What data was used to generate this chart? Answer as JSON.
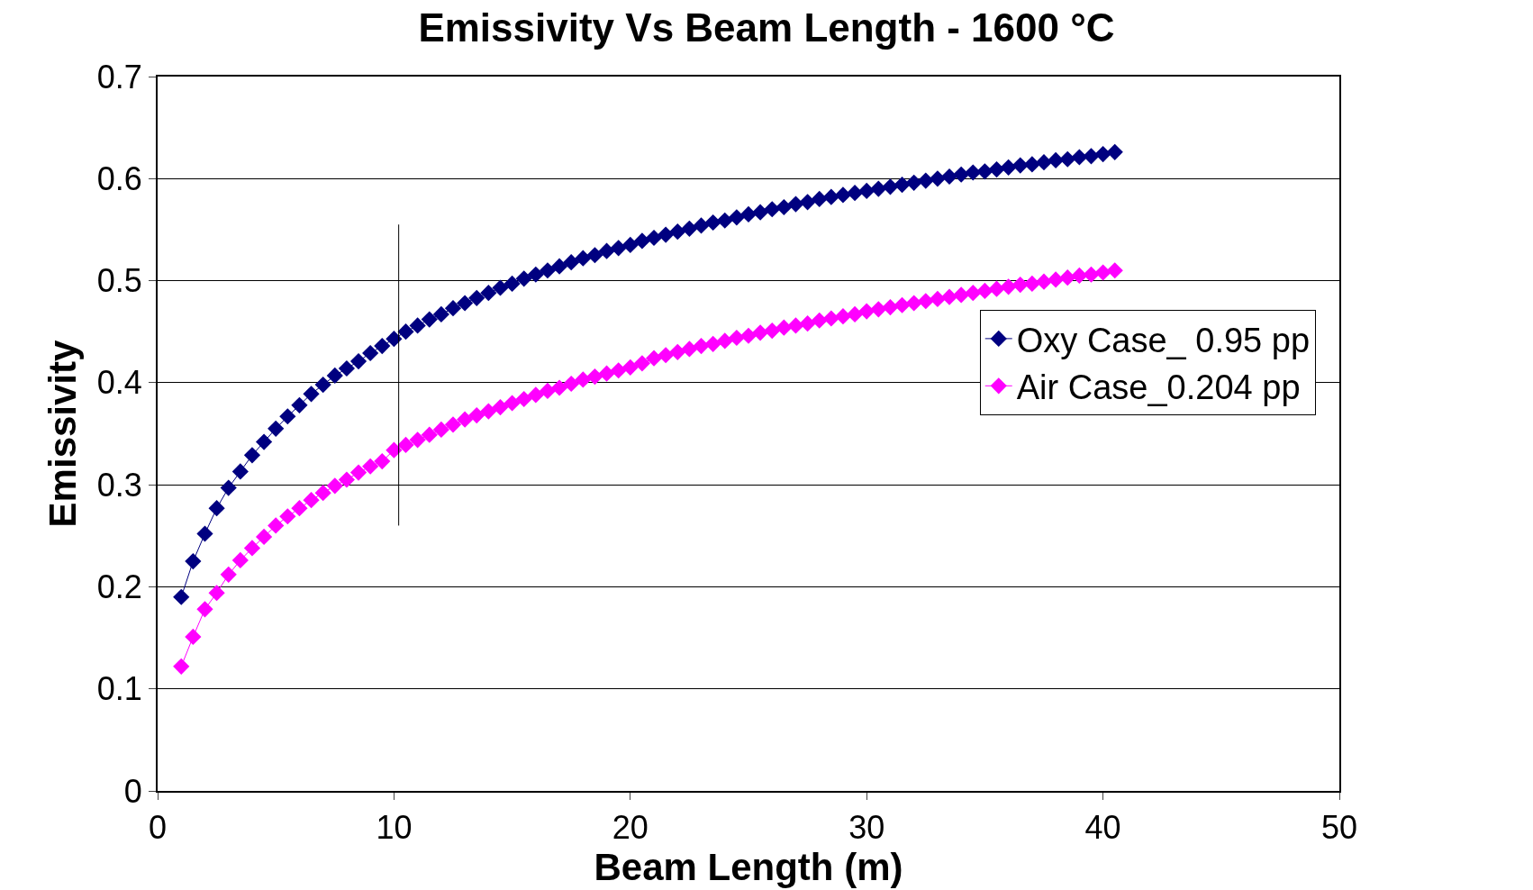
{
  "chart_data": {
    "type": "line",
    "title": "Emissivity Vs Beam Length - 1600 °C",
    "xlabel": "Beam Length (m)",
    "ylabel": "Emissivity",
    "x": [
      1,
      1.5,
      2,
      2.5,
      3,
      3.5,
      4,
      4.5,
      5,
      5.5,
      6,
      6.5,
      7,
      7.5,
      8,
      8.5,
      9,
      9.5,
      10,
      10.5,
      11,
      11.5,
      12,
      12.5,
      13,
      13.5,
      14,
      14.5,
      15,
      15.5,
      16,
      16.5,
      17,
      17.5,
      18,
      18.5,
      19,
      19.5,
      20,
      20.5,
      21,
      21.5,
      22,
      22.5,
      23,
      23.5,
      24,
      24.5,
      25,
      25.5,
      26,
      26.5,
      27,
      27.5,
      28,
      28.5,
      29,
      29.5,
      30,
      30.5,
      31,
      31.5,
      32,
      32.5,
      33,
      33.5,
      34,
      34.5,
      35,
      35.5,
      36,
      36.5,
      37,
      37.5,
      38,
      38.5,
      39,
      39.5,
      40,
      40.5
    ],
    "series": [
      {
        "name": "Oxy Case_ 0.95 pp",
        "color": "#000080",
        "values": [
          0.19,
          0.225,
          0.252,
          0.277,
          0.297,
          0.313,
          0.329,
          0.342,
          0.355,
          0.367,
          0.378,
          0.389,
          0.398,
          0.407,
          0.414,
          0.421,
          0.429,
          0.436,
          0.443,
          0.45,
          0.456,
          0.462,
          0.467,
          0.473,
          0.478,
          0.483,
          0.488,
          0.493,
          0.497,
          0.502,
          0.506,
          0.51,
          0.514,
          0.518,
          0.522,
          0.525,
          0.529,
          0.532,
          0.535,
          0.539,
          0.542,
          0.545,
          0.548,
          0.551,
          0.554,
          0.557,
          0.559,
          0.562,
          0.565,
          0.567,
          0.57,
          0.572,
          0.575,
          0.577,
          0.58,
          0.582,
          0.584,
          0.586,
          0.588,
          0.59,
          0.592,
          0.594,
          0.596,
          0.598,
          0.6,
          0.602,
          0.604,
          0.606,
          0.607,
          0.609,
          0.611,
          0.613,
          0.614,
          0.616,
          0.618,
          0.619,
          0.621,
          0.622,
          0.624,
          0.626
        ]
      },
      {
        "name": "Air Case_0.204 pp",
        "color": "#ff00ff",
        "values": [
          0.122,
          0.151,
          0.178,
          0.194,
          0.212,
          0.226,
          0.238,
          0.249,
          0.26,
          0.269,
          0.277,
          0.285,
          0.292,
          0.299,
          0.305,
          0.312,
          0.318,
          0.323,
          0.334,
          0.339,
          0.344,
          0.349,
          0.354,
          0.359,
          0.364,
          0.368,
          0.372,
          0.376,
          0.38,
          0.384,
          0.388,
          0.392,
          0.395,
          0.399,
          0.403,
          0.406,
          0.409,
          0.412,
          0.415,
          0.419,
          0.424,
          0.427,
          0.43,
          0.433,
          0.436,
          0.438,
          0.441,
          0.444,
          0.446,
          0.449,
          0.451,
          0.454,
          0.456,
          0.458,
          0.461,
          0.463,
          0.465,
          0.467,
          0.47,
          0.472,
          0.474,
          0.476,
          0.478,
          0.48,
          0.482,
          0.484,
          0.486,
          0.488,
          0.49,
          0.492,
          0.494,
          0.496,
          0.497,
          0.499,
          0.501,
          0.503,
          0.505,
          0.506,
          0.508,
          0.51
        ]
      },
      {
        "color": "#000000",
        "x": [
          10.2,
          10.2
        ],
        "values": [
          0.26,
          0.555
        ],
        "marker": "none"
      }
    ],
    "xlim": [
      0,
      50
    ],
    "xticks": [
      0,
      10,
      20,
      30,
      40,
      50
    ],
    "ylim": [
      0,
      0.7
    ],
    "yticks": [
      0,
      0.1,
      0.2,
      0.3,
      0.4,
      0.5,
      0.6,
      0.7
    ],
    "grid": "y",
    "legend": "right",
    "marker": "diamond",
    "line_style": "solid"
  }
}
